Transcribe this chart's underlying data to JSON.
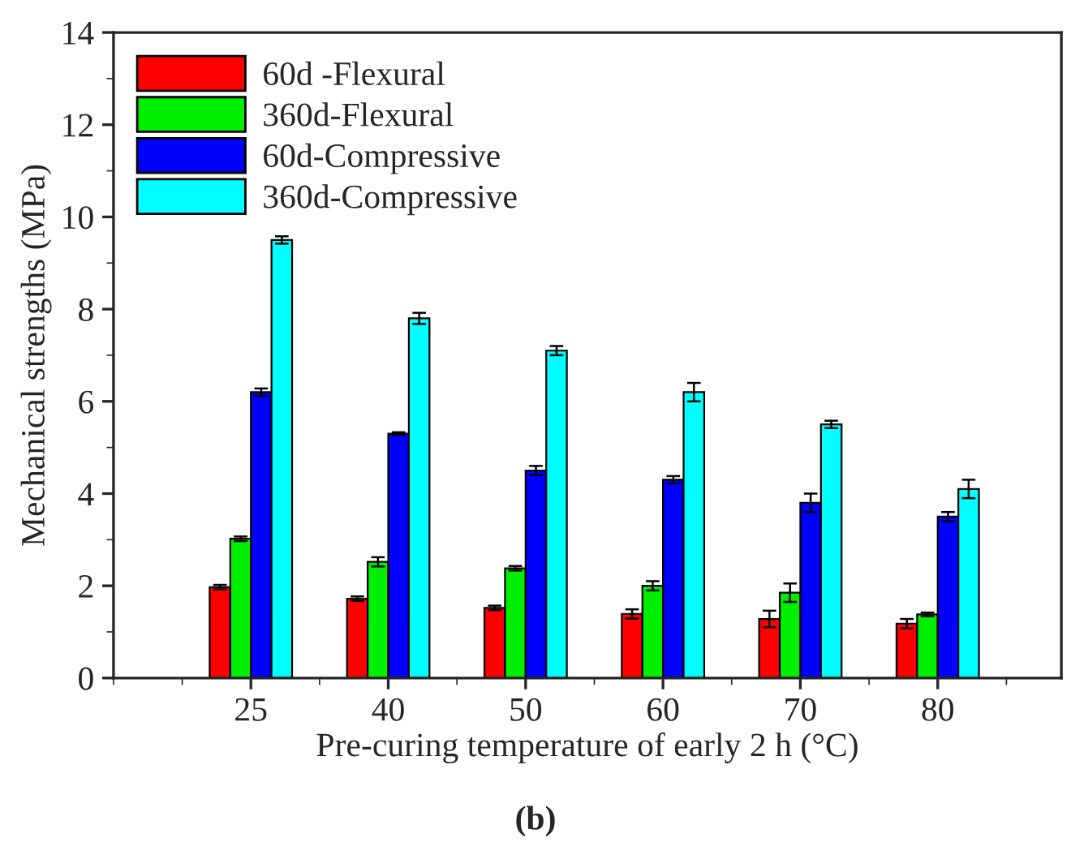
{
  "chart_data": {
    "type": "bar",
    "xlabel": "Pre-curing temperature of early 2 h (°C)",
    "ylabel": "Mechanical strengths (MPa)",
    "categories": [
      "25",
      "40",
      "50",
      "60",
      "70",
      "80"
    ],
    "series": [
      {
        "name": "60d -Flexural",
        "color": "#ff0000",
        "values": [
          1.97,
          1.72,
          1.52,
          1.39,
          1.28,
          1.18
        ],
        "errors": [
          0.05,
          0.05,
          0.05,
          0.1,
          0.18,
          0.1
        ]
      },
      {
        "name": "360d-Flexural",
        "color": "#00ee00",
        "values": [
          3.02,
          2.52,
          2.38,
          2.0,
          1.85,
          1.38
        ],
        "errors": [
          0.05,
          0.1,
          0.05,
          0.1,
          0.2,
          0.04
        ]
      },
      {
        "name": "60d-Compressive",
        "color": "#0000ff",
        "values": [
          6.2,
          5.3,
          4.5,
          4.3,
          3.8,
          3.5
        ],
        "errors": [
          0.08,
          0.03,
          0.1,
          0.08,
          0.2,
          0.1
        ]
      },
      {
        "name": "360d-Compressive",
        "color": "#00ffff",
        "values": [
          9.5,
          7.8,
          7.1,
          6.2,
          5.5,
          4.1
        ],
        "errors": [
          0.08,
          0.12,
          0.1,
          0.2,
          0.08,
          0.2
        ]
      }
    ],
    "ylim": [
      0,
      14
    ],
    "yticks": [
      0,
      2,
      4,
      6,
      8,
      10,
      12,
      14
    ],
    "grid": false,
    "legend": "top left",
    "annotations": [
      "(b)"
    ]
  }
}
